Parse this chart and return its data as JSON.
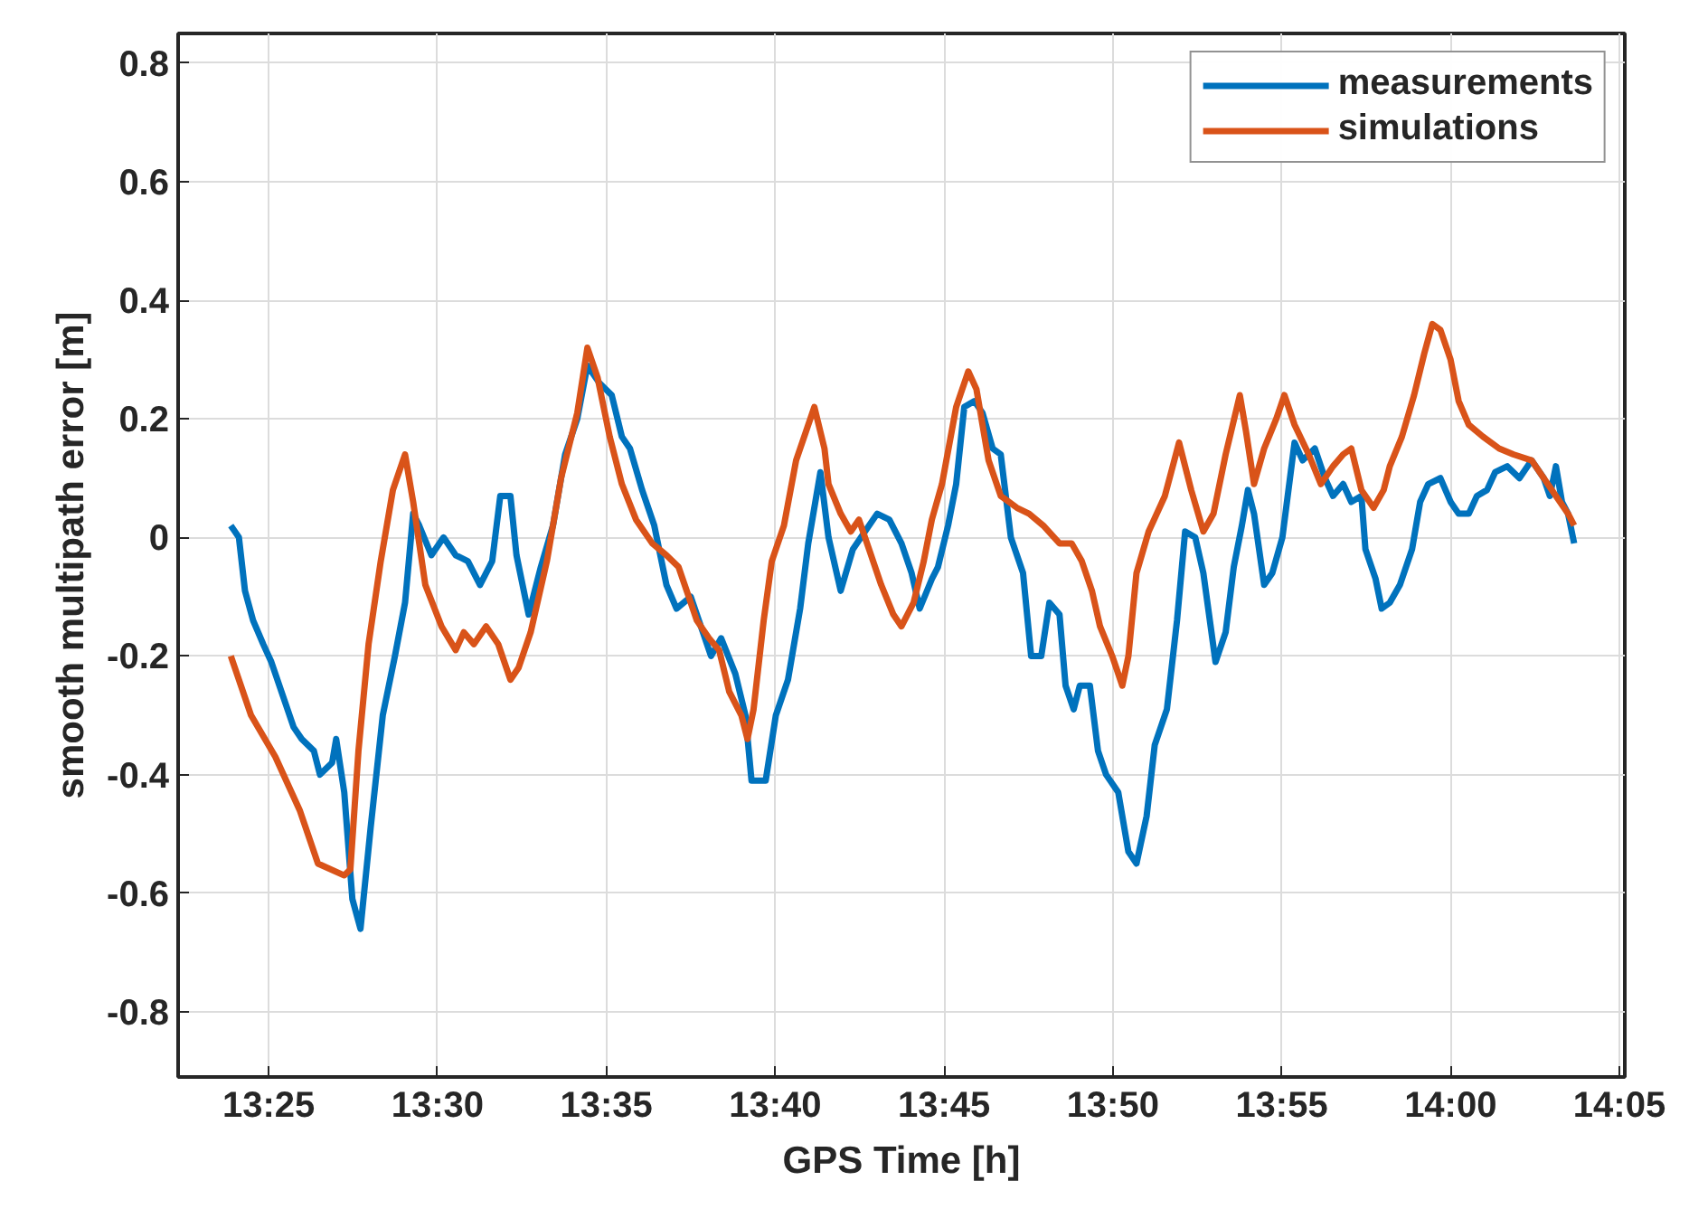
{
  "chart_data": {
    "type": "line",
    "xlabel": "GPS Time [h]",
    "ylabel": "smooth multipath error [m]",
    "xlim": [
      13.372,
      14.086
    ],
    "ylim": [
      -0.91,
      0.85
    ],
    "xticks": [
      {
        "value": 13.416667,
        "label": "13:25"
      },
      {
        "value": 13.5,
        "label": "13:30"
      },
      {
        "value": 13.583333,
        "label": "13:35"
      },
      {
        "value": 13.666667,
        "label": "13:40"
      },
      {
        "value": 13.75,
        "label": "13:45"
      },
      {
        "value": 13.833333,
        "label": "13:50"
      },
      {
        "value": 13.916667,
        "label": "13:55"
      },
      {
        "value": 14.0,
        "label": "14:00"
      },
      {
        "value": 14.083333,
        "label": "14:05"
      }
    ],
    "yticks": [
      {
        "value": -0.8,
        "label": "-0.8"
      },
      {
        "value": -0.6,
        "label": "-0.6"
      },
      {
        "value": -0.4,
        "label": "-0.4"
      },
      {
        "value": -0.2,
        "label": "-0.2"
      },
      0,
      {
        "value": 0.2,
        "label": "0.2"
      },
      {
        "value": 0.4,
        "label": "0.4"
      },
      {
        "value": 0.6,
        "label": "0.6"
      },
      {
        "value": 0.8,
        "label": "0.8"
      }
    ],
    "grid": true,
    "legend": "top right",
    "line_style": "solid",
    "series": [
      {
        "name": "measurements",
        "color": "#0072bd",
        "x": [
          13.398,
          13.402,
          13.405,
          13.409,
          13.414,
          13.418,
          13.423,
          13.429,
          13.433,
          13.439,
          13.442,
          13.448,
          13.45,
          13.454,
          13.458,
          13.462,
          13.467,
          13.473,
          13.479,
          13.484,
          13.488,
          13.491,
          13.497,
          13.503,
          13.509,
          13.515,
          13.521,
          13.527,
          13.531,
          13.536,
          13.539,
          13.545,
          13.551,
          13.557,
          13.563,
          13.569,
          13.574,
          13.58,
          13.586,
          13.591,
          13.595,
          13.601,
          13.607,
          13.613,
          13.618,
          13.625,
          13.631,
          13.635,
          13.64,
          13.647,
          13.652,
          13.655,
          13.662,
          13.667,
          13.673,
          13.679,
          13.683,
          13.689,
          13.693,
          13.699,
          13.705,
          13.711,
          13.717,
          13.723,
          13.729,
          13.734,
          13.738,
          13.744,
          13.747,
          13.752,
          13.756,
          13.76,
          13.765,
          13.769,
          13.774,
          13.778,
          13.783,
          13.789,
          13.793,
          13.798,
          13.802,
          13.807,
          13.81,
          13.814,
          13.817,
          13.822,
          13.826,
          13.83,
          13.836,
          13.841,
          13.845,
          13.85,
          13.854,
          13.86,
          13.865,
          13.869,
          13.874,
          13.878,
          13.884,
          13.889,
          13.893,
          13.897,
          13.9,
          13.903,
          13.908,
          13.912,
          13.917,
          13.923,
          13.927,
          13.933,
          13.938,
          13.942,
          13.947,
          13.951,
          13.956,
          13.958,
          13.963,
          13.966,
          13.97,
          13.975,
          13.981,
          13.985,
          13.989,
          13.995,
          14.0,
          14.004,
          14.009,
          14.013,
          14.018,
          14.022,
          14.028,
          14.034,
          14.04,
          14.046,
          14.049,
          14.052,
          14.055,
          14.058,
          14.061
        ],
        "values": [
          0.02,
          0.0,
          -0.09,
          -0.14,
          -0.18,
          -0.21,
          -0.26,
          -0.32,
          -0.34,
          -0.36,
          -0.4,
          -0.38,
          -0.34,
          -0.43,
          -0.61,
          -0.66,
          -0.49,
          -0.3,
          -0.2,
          -0.11,
          0.04,
          0.02,
          -0.03,
          0.0,
          -0.03,
          -0.04,
          -0.08,
          -0.04,
          0.07,
          0.07,
          -0.03,
          -0.13,
          -0.05,
          0.02,
          0.14,
          0.2,
          0.29,
          0.26,
          0.24,
          0.17,
          0.15,
          0.08,
          0.02,
          -0.08,
          -0.12,
          -0.1,
          -0.16,
          -0.2,
          -0.17,
          -0.23,
          -0.3,
          -0.41,
          -0.41,
          -0.3,
          -0.24,
          -0.12,
          -0.01,
          0.11,
          0.0,
          -0.09,
          -0.02,
          0.01,
          0.04,
          0.03,
          -0.01,
          -0.06,
          -0.12,
          -0.07,
          -0.05,
          0.02,
          0.09,
          0.22,
          0.23,
          0.21,
          0.15,
          0.14,
          0.0,
          -0.06,
          -0.2,
          -0.2,
          -0.11,
          -0.13,
          -0.25,
          -0.29,
          -0.25,
          -0.25,
          -0.36,
          -0.4,
          -0.43,
          -0.53,
          -0.55,
          -0.47,
          -0.35,
          -0.29,
          -0.14,
          0.01,
          0.0,
          -0.06,
          -0.21,
          -0.16,
          -0.05,
          0.02,
          0.08,
          0.04,
          -0.08,
          -0.06,
          0.0,
          0.16,
          0.13,
          0.15,
          0.1,
          0.07,
          0.09,
          0.06,
          0.07,
          -0.02,
          -0.07,
          -0.12,
          -0.11,
          -0.08,
          -0.02,
          0.06,
          0.09,
          0.1,
          0.06,
          0.04,
          0.04,
          0.07,
          0.08,
          0.11,
          0.12,
          0.1,
          0.13,
          0.1,
          0.07,
          0.12,
          0.06,
          0.04,
          -0.01
        ]
      },
      {
        "name": "simulations",
        "color": "#d95319",
        "x": [
          13.398,
          13.408,
          13.42,
          13.432,
          13.441,
          13.454,
          13.457,
          13.461,
          13.466,
          13.472,
          13.478,
          13.484,
          13.488,
          13.494,
          13.502,
          13.509,
          13.513,
          13.518,
          13.524,
          13.53,
          13.536,
          13.54,
          13.546,
          13.554,
          13.561,
          13.569,
          13.574,
          13.579,
          13.585,
          13.591,
          13.598,
          13.606,
          13.613,
          13.619,
          13.624,
          13.628,
          13.634,
          13.639,
          13.644,
          13.65,
          13.653,
          13.656,
          13.661,
          13.665,
          13.671,
          13.677,
          13.682,
          13.686,
          13.691,
          13.693,
          13.699,
          13.704,
          13.708,
          13.713,
          13.719,
          13.725,
          13.729,
          13.735,
          13.74,
          13.744,
          13.749,
          13.756,
          13.762,
          13.766,
          13.772,
          13.778,
          13.786,
          13.792,
          13.799,
          13.807,
          13.813,
          13.818,
          13.823,
          13.827,
          13.833,
          13.838,
          13.841,
          13.845,
          13.851,
          13.859,
          13.866,
          13.872,
          13.878,
          13.883,
          13.889,
          13.896,
          13.899,
          13.903,
          13.908,
          13.914,
          13.918,
          13.923,
          13.93,
          13.936,
          13.942,
          13.947,
          13.951,
          13.956,
          13.962,
          13.967,
          13.97,
          13.976,
          13.982,
          13.987,
          13.991,
          13.995,
          14.0,
          14.004,
          14.009,
          14.016,
          14.024,
          14.031,
          14.04,
          14.046,
          14.052,
          14.058,
          14.061
        ],
        "values": [
          -0.2,
          -0.3,
          -0.37,
          -0.46,
          -0.55,
          -0.57,
          -0.56,
          -0.36,
          -0.18,
          -0.04,
          0.08,
          0.14,
          0.06,
          -0.08,
          -0.15,
          -0.19,
          -0.16,
          -0.18,
          -0.15,
          -0.18,
          -0.24,
          -0.22,
          -0.16,
          -0.04,
          0.1,
          0.21,
          0.32,
          0.27,
          0.17,
          0.09,
          0.03,
          -0.01,
          -0.03,
          -0.05,
          -0.1,
          -0.14,
          -0.17,
          -0.19,
          -0.26,
          -0.3,
          -0.34,
          -0.29,
          -0.14,
          -0.04,
          0.02,
          0.13,
          0.18,
          0.22,
          0.15,
          0.09,
          0.04,
          0.01,
          0.03,
          -0.02,
          -0.08,
          -0.13,
          -0.15,
          -0.11,
          -0.04,
          0.03,
          0.09,
          0.22,
          0.28,
          0.25,
          0.13,
          0.07,
          0.05,
          0.04,
          0.02,
          -0.01,
          -0.01,
          -0.04,
          -0.09,
          -0.15,
          -0.2,
          -0.25,
          -0.2,
          -0.06,
          0.01,
          0.07,
          0.16,
          0.08,
          0.01,
          0.04,
          0.14,
          0.24,
          0.18,
          0.09,
          0.15,
          0.2,
          0.24,
          0.19,
          0.14,
          0.09,
          0.12,
          0.14,
          0.15,
          0.08,
          0.05,
          0.08,
          0.12,
          0.17,
          0.24,
          0.31,
          0.36,
          0.35,
          0.3,
          0.23,
          0.19,
          0.17,
          0.15,
          0.14,
          0.13,
          0.1,
          0.07,
          0.04,
          0.02
        ]
      }
    ]
  }
}
